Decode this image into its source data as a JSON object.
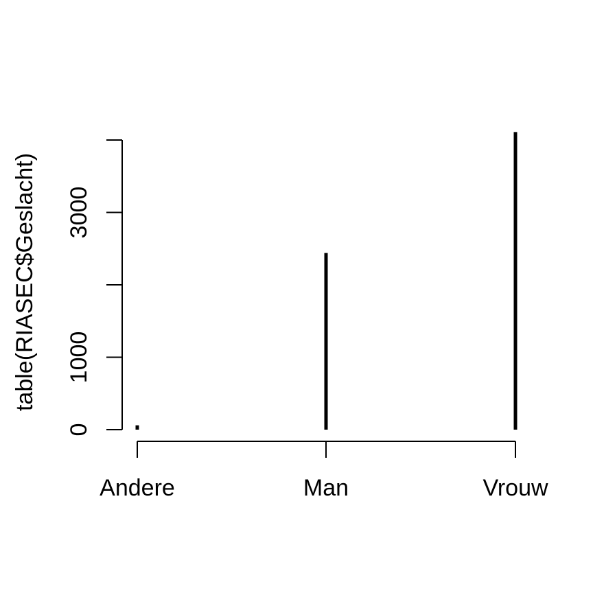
{
  "chart_data": {
    "type": "bar",
    "style": "vertical-lines",
    "categories": [
      "Andere",
      "Man",
      "Vrouw"
    ],
    "values": [
      60,
      2440,
      4110
    ],
    "title": "",
    "xlabel": "",
    "ylabel": "table(RIASEC$Geslacht)",
    "ylim": [
      0,
      4000
    ],
    "yticks": [
      {
        "value": 0,
        "label": "0"
      },
      {
        "value": 1000,
        "label": "1000"
      },
      {
        "value": 2000,
        "label": ""
      },
      {
        "value": 3000,
        "label": "3000"
      },
      {
        "value": 4000,
        "label": ""
      }
    ],
    "grid": false,
    "legend": "none",
    "color": "#000000"
  }
}
